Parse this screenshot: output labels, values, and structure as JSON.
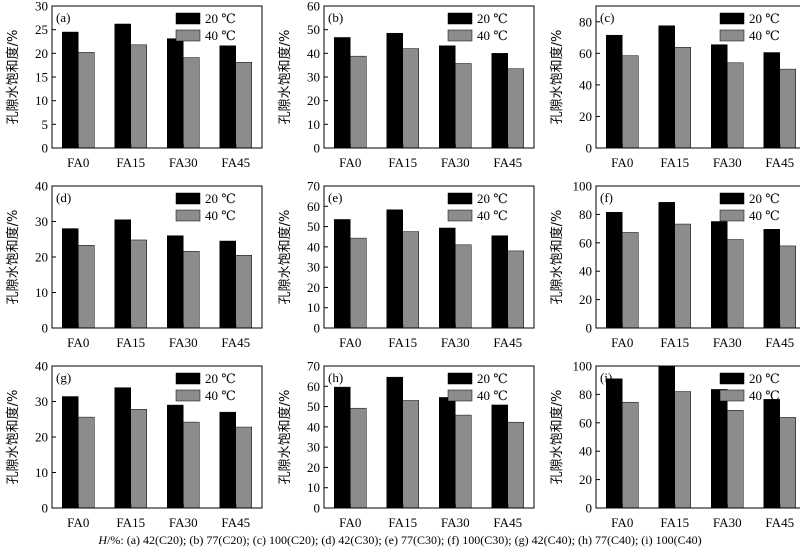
{
  "figure": {
    "caption_prefix": "H",
    "caption_rest": "/%: (a) 42(C20); (b) 77(C20); (c) 100(C20); (d) 42(C30); (e) 77(C30); (f) 100(C30); (g) 42(C40); (h) 77(C40); (i) 100(C40)"
  },
  "colors": {
    "series_20": "#000000",
    "series_40": "#8c8c8c",
    "axis": "#000000"
  },
  "chart_data": [
    {
      "type": "bar",
      "panel": "(a)",
      "categories": [
        "FA0",
        "FA15",
        "FA30",
        "FA45"
      ],
      "series": [
        {
          "name": "20 ℃",
          "values": [
            24.5,
            26.2,
            23.1,
            21.6
          ]
        },
        {
          "name": "40 ℃",
          "values": [
            20.2,
            21.8,
            19.1,
            18.1
          ]
        }
      ],
      "ylabel": "孔隙水饱和度/%",
      "ylim": [
        0,
        30
      ],
      "yticks": [
        0,
        5,
        10,
        15,
        20,
        25,
        30
      ],
      "legend": "top-right"
    },
    {
      "type": "bar",
      "panel": "(b)",
      "categories": [
        "FA0",
        "FA15",
        "FA30",
        "FA45"
      ],
      "series": [
        {
          "name": "20 ℃",
          "values": [
            46.7,
            48.5,
            43.2,
            40.0
          ]
        },
        {
          "name": "40 ℃",
          "values": [
            38.8,
            42.0,
            35.7,
            33.5
          ]
        }
      ],
      "ylabel": "孔隙水饱和度/%",
      "ylim": [
        0,
        60
      ],
      "yticks": [
        0,
        10,
        20,
        30,
        40,
        50,
        60
      ],
      "legend": "top-right"
    },
    {
      "type": "bar",
      "panel": "(c)",
      "categories": [
        "FA0",
        "FA15",
        "FA30",
        "FA45"
      ],
      "series": [
        {
          "name": "20 ℃",
          "values": [
            71.5,
            77.5,
            65.5,
            60.5
          ]
        },
        {
          "name": "40 ℃",
          "values": [
            58.5,
            63.8,
            54.0,
            50.0
          ]
        }
      ],
      "ylabel": "孔隙水饱和度/%",
      "ylim": [
        0,
        90
      ],
      "yticks": [
        0,
        20,
        40,
        60,
        80
      ],
      "legend": "top-right"
    },
    {
      "type": "bar",
      "panel": "(d)",
      "categories": [
        "FA0",
        "FA15",
        "FA30",
        "FA45"
      ],
      "series": [
        {
          "name": "20 ℃",
          "values": [
            28.0,
            30.5,
            26.0,
            24.5
          ]
        },
        {
          "name": "40 ℃",
          "values": [
            23.3,
            24.8,
            21.6,
            20.5
          ]
        }
      ],
      "ylabel": "孔隙水饱和度/%",
      "ylim": [
        0,
        40
      ],
      "yticks": [
        0,
        10,
        20,
        30,
        40
      ],
      "legend": "top-right"
    },
    {
      "type": "bar",
      "panel": "(e)",
      "categories": [
        "FA0",
        "FA15",
        "FA30",
        "FA45"
      ],
      "series": [
        {
          "name": "20 ℃",
          "values": [
            53.5,
            58.3,
            49.3,
            45.5
          ]
        },
        {
          "name": "40 ℃",
          "values": [
            44.3,
            47.5,
            41.0,
            38.0
          ]
        }
      ],
      "ylabel": "孔隙水饱和度/%",
      "ylim": [
        0,
        70
      ],
      "yticks": [
        0,
        10,
        20,
        30,
        40,
        50,
        60,
        70
      ],
      "legend": "top-right"
    },
    {
      "type": "bar",
      "panel": "(f)",
      "categories": [
        "FA0",
        "FA15",
        "FA30",
        "FA45"
      ],
      "series": [
        {
          "name": "20 ℃",
          "values": [
            81.5,
            88.5,
            75.0,
            69.5
          ]
        },
        {
          "name": "40 ℃",
          "values": [
            67.3,
            73.2,
            62.3,
            57.8
          ]
        }
      ],
      "ylabel": "孔隙水饱和度/%",
      "ylim": [
        0,
        100
      ],
      "yticks": [
        0,
        20,
        40,
        60,
        80,
        100
      ],
      "legend": "top-right"
    },
    {
      "type": "bar",
      "panel": "(g)",
      "categories": [
        "FA0",
        "FA15",
        "FA30",
        "FA45"
      ],
      "series": [
        {
          "name": "20 ℃",
          "values": [
            31.4,
            33.9,
            29.0,
            27.0
          ]
        },
        {
          "name": "40 ℃",
          "values": [
            25.6,
            27.8,
            24.2,
            22.8
          ]
        }
      ],
      "ylabel": "孔隙水饱和度/%",
      "ylim": [
        0,
        40
      ],
      "yticks": [
        0,
        10,
        20,
        30,
        40
      ],
      "legend": "top-right"
    },
    {
      "type": "bar",
      "panel": "(h)",
      "categories": [
        "FA0",
        "FA15",
        "FA30",
        "FA45"
      ],
      "series": [
        {
          "name": "20 ℃",
          "values": [
            59.6,
            64.5,
            54.5,
            50.8
          ]
        },
        {
          "name": "40 ℃",
          "values": [
            49.2,
            53.0,
            45.8,
            42.3
          ]
        }
      ],
      "ylabel": "孔隙水饱和度/%",
      "ylim": [
        0,
        70
      ],
      "yticks": [
        0,
        10,
        20,
        30,
        40,
        50,
        60,
        70
      ],
      "legend": "top-right"
    },
    {
      "type": "bar",
      "panel": "(i)",
      "categories": [
        "FA0",
        "FA15",
        "FA30",
        "FA45"
      ],
      "series": [
        {
          "name": "20 ℃",
          "values": [
            91.0,
            100.0,
            83.5,
            76.5
          ]
        },
        {
          "name": "40 ℃",
          "values": [
            74.5,
            82.0,
            68.8,
            63.8
          ]
        }
      ],
      "ylabel": "孔隙水饱和度/%",
      "ylim": [
        0,
        100
      ],
      "yticks": [
        0,
        20,
        40,
        60,
        80,
        100
      ],
      "legend": "top-right"
    }
  ]
}
